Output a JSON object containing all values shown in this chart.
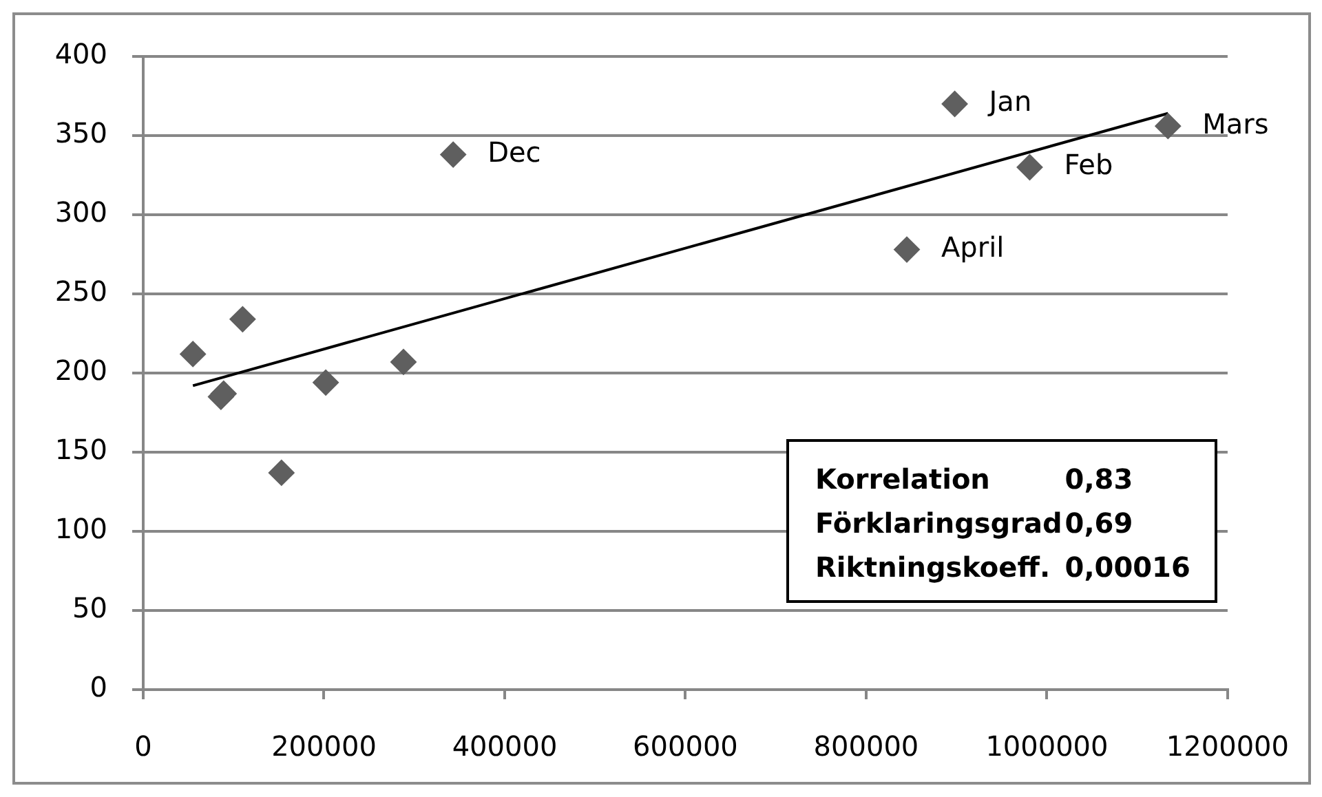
{
  "chart_data": {
    "type": "scatter",
    "marker": "diamond",
    "grid": "y",
    "legend": false,
    "series": [
      {
        "color": "#5f5f5f",
        "x": [
          55000,
          86000,
          89000,
          110000,
          153000,
          202000,
          288000,
          343000,
          845000,
          898000,
          981000,
          1134000
        ],
        "values": [
          212,
          185,
          187,
          234,
          137,
          194,
          207,
          338,
          278,
          370,
          330,
          356
        ]
      },
      {
        "type": "line",
        "color": "#000000",
        "marker": "none",
        "line_style": "solid",
        "x": [
          55000,
          1134000
        ],
        "values": [
          192,
          364
        ]
      }
    ],
    "xlim": [
      0,
      1200000
    ],
    "xticks": [
      0,
      200000,
      400000,
      600000,
      800000,
      1000000,
      1200000
    ],
    "ylim": [
      0,
      400
    ],
    "yticks": [
      0,
      50,
      100,
      150,
      200,
      250,
      300,
      350,
      400
    ],
    "annotations": [
      {
        "text": "Dec",
        "x": 343000,
        "y": 338
      },
      {
        "text": "April",
        "x": 845000,
        "y": 278
      },
      {
        "text": "Jan",
        "x": 898000,
        "y": 370
      },
      {
        "text": "Feb",
        "x": 981000,
        "y": 330
      },
      {
        "text": "Mars",
        "x": 1134000,
        "y": 356
      },
      "Korrelation",
      "0,83",
      "Förklaringsgrad",
      "0,69",
      "Riktningskoeff.",
      "0,00016"
    ]
  }
}
